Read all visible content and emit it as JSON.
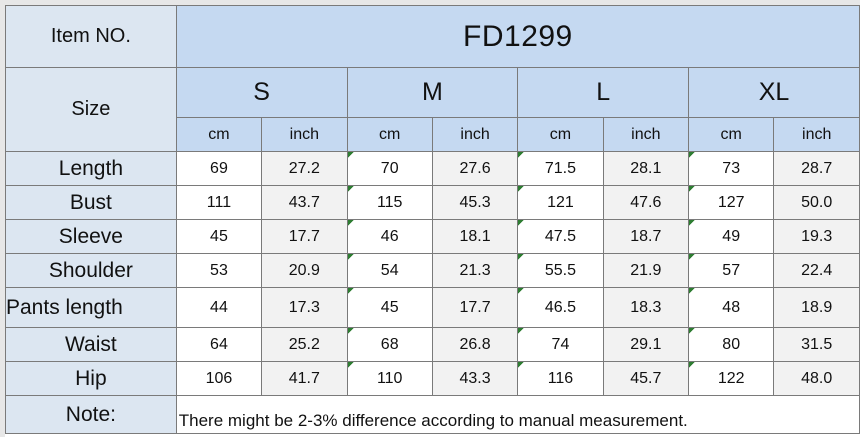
{
  "item_label": "Item NO.",
  "item_number": "FD1299",
  "size_label": "Size",
  "sizes": [
    "S",
    "M",
    "L",
    "XL"
  ],
  "units": [
    "cm",
    "inch"
  ],
  "rows": [
    {
      "label": "Length",
      "values": [
        "69",
        "27.2",
        "70",
        "27.6",
        "71.5",
        "28.1",
        "73",
        "28.7"
      ]
    },
    {
      "label": "Bust",
      "values": [
        "111",
        "43.7",
        "115",
        "45.3",
        "121",
        "47.6",
        "127",
        "50.0"
      ]
    },
    {
      "label": "Sleeve",
      "values": [
        "45",
        "17.7",
        "46",
        "18.1",
        "47.5",
        "18.7",
        "49",
        "19.3"
      ]
    },
    {
      "label": "Shoulder",
      "values": [
        "53",
        "20.9",
        "54",
        "21.3",
        "55.5",
        "21.9",
        "57",
        "22.4"
      ]
    },
    {
      "label": "Pants length",
      "values": [
        "44",
        "17.3",
        "45",
        "17.7",
        "46.5",
        "18.3",
        "48",
        "18.9"
      ]
    },
    {
      "label": "Waist",
      "values": [
        "64",
        "25.2",
        "68",
        "26.8",
        "74",
        "29.1",
        "80",
        "31.5"
      ]
    },
    {
      "label": "Hip",
      "values": [
        "106",
        "41.7",
        "110",
        "43.3",
        "116",
        "45.7",
        "122",
        "48.0"
      ]
    }
  ],
  "note_label": "Note:",
  "note_text": "There might be 2-3% difference according to manual measurement.",
  "colors": {
    "header_blue": "#c5d9f1",
    "label_blue": "#dce6f1",
    "alt_grey": "#f2f2f2",
    "grid": "#7a7a7a",
    "cell_marker": "#2e7d32"
  }
}
